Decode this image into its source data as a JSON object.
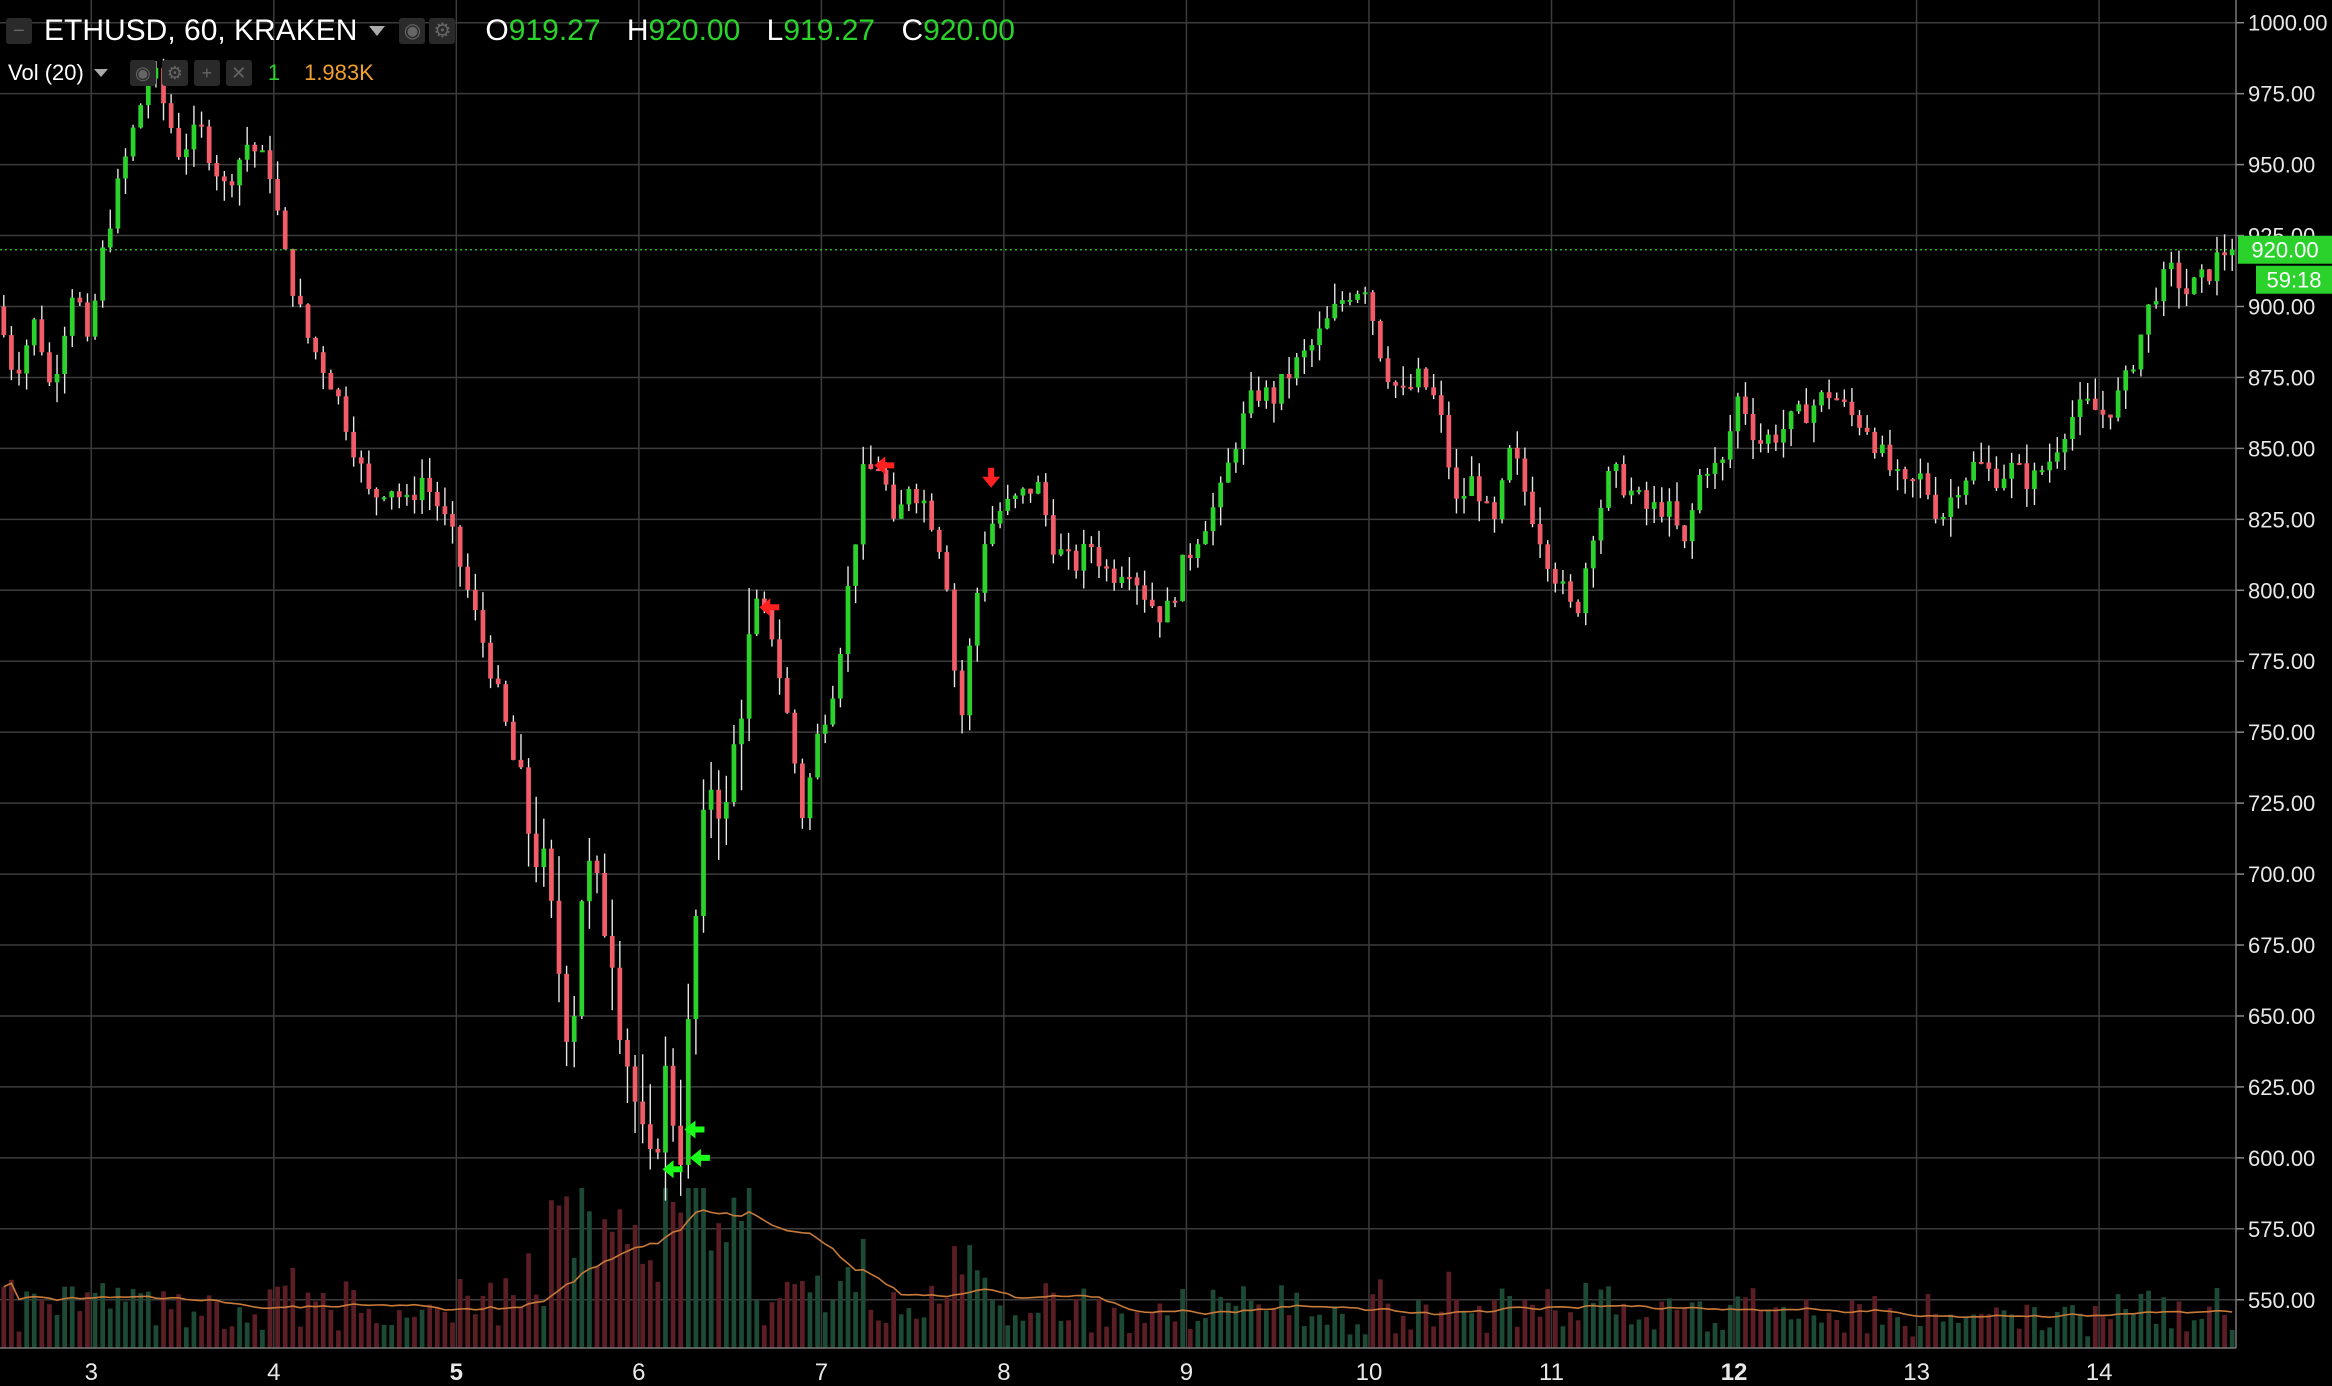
{
  "header": {
    "symbol": "ETHUSD, 60, KRAKEN",
    "o_label": "O",
    "o_value": "919.27",
    "h_label": "H",
    "h_value": "920.00",
    "l_label": "L",
    "l_value": "919.27",
    "c_label": "C",
    "c_value": "920.00"
  },
  "volume_legend": {
    "name": "Vol (20)",
    "count": "1",
    "value": "1.983K"
  },
  "price_badge": {
    "price": "920.00",
    "countdown": "59:18"
  },
  "colors": {
    "up": "#2bd22b",
    "down": "#f25c68",
    "vol_up": "#1c4a35",
    "vol_down": "#5a1e24",
    "ma": "#c87a3a",
    "grid": "#3c3c3c",
    "background": "#000000"
  },
  "chart_data": {
    "type": "candlestick",
    "y_axis": {
      "ticks": [
        1000,
        975,
        950,
        925,
        900,
        875,
        850,
        825,
        800,
        775,
        750,
        725,
        700,
        675,
        650,
        625,
        600,
        575,
        550
      ],
      "tick_labels": [
        "1000.00",
        "975.00",
        "950.00",
        "925.00",
        "900.00",
        "875.00",
        "850.00",
        "825.00",
        "800.00",
        "775.00",
        "750.00",
        "725.00",
        "700.00",
        "675.00",
        "650.00",
        "625.00",
        "600.00",
        "575.00",
        "550.00"
      ],
      "ylim": [
        533,
        1008
      ]
    },
    "x_axis": {
      "tick_labels": [
        "3",
        "4",
        "5",
        "6",
        "7",
        "8",
        "9",
        "10",
        "11",
        "12",
        "13",
        "14"
      ],
      "bold": [
        "5",
        "12"
      ],
      "x_range_days": [
        2.5,
        14.75
      ]
    },
    "last_price": 920.0,
    "price_path": [
      [
        2.5,
        900
      ],
      [
        2.6,
        876
      ],
      [
        2.72,
        896
      ],
      [
        2.8,
        870
      ],
      [
        2.93,
        910
      ],
      [
        3.0,
        885
      ],
      [
        3.1,
        925
      ],
      [
        3.2,
        950
      ],
      [
        3.35,
        985
      ],
      [
        3.5,
        955
      ],
      [
        3.62,
        962
      ],
      [
        3.75,
        942
      ],
      [
        3.88,
        958
      ],
      [
        4.0,
        948
      ],
      [
        4.08,
        918
      ],
      [
        4.2,
        890
      ],
      [
        4.35,
        872
      ],
      [
        4.45,
        853
      ],
      [
        4.55,
        832
      ],
      [
        4.65,
        838
      ],
      [
        4.75,
        830
      ],
      [
        4.83,
        840
      ],
      [
        4.92,
        830
      ],
      [
        5.0,
        818
      ],
      [
        5.1,
        796
      ],
      [
        5.2,
        775
      ],
      [
        5.3,
        750
      ],
      [
        5.4,
        720
      ],
      [
        5.5,
        700
      ],
      [
        5.6,
        660
      ],
      [
        5.65,
        640
      ],
      [
        5.72,
        705
      ],
      [
        5.8,
        690
      ],
      [
        5.87,
        678
      ],
      [
        5.92,
        650
      ],
      [
        6.0,
        620
      ],
      [
        6.05,
        600
      ],
      [
        6.1,
        590
      ],
      [
        6.15,
        632
      ],
      [
        6.25,
        605
      ],
      [
        6.3,
        650
      ],
      [
        6.35,
        700
      ],
      [
        6.42,
        735
      ],
      [
        6.5,
        720
      ],
      [
        6.55,
        748
      ],
      [
        6.6,
        770
      ],
      [
        6.67,
        795
      ],
      [
        6.75,
        785
      ],
      [
        6.85,
        750
      ],
      [
        6.92,
        720
      ],
      [
        7.0,
        748
      ],
      [
        7.1,
        770
      ],
      [
        7.2,
        815
      ],
      [
        7.25,
        840
      ],
      [
        7.35,
        845
      ],
      [
        7.42,
        820
      ],
      [
        7.5,
        838
      ],
      [
        7.6,
        830
      ],
      [
        7.7,
        810
      ],
      [
        7.78,
        750
      ],
      [
        7.85,
        788
      ],
      [
        7.92,
        820
      ],
      [
        8.0,
        828
      ],
      [
        8.1,
        832
      ],
      [
        8.2,
        838
      ],
      [
        8.3,
        815
      ],
      [
        8.4,
        808
      ],
      [
        8.5,
        816
      ],
      [
        8.6,
        805
      ],
      [
        8.7,
        810
      ],
      [
        8.8,
        798
      ],
      [
        8.9,
        790
      ],
      [
        9.0,
        808
      ],
      [
        9.1,
        822
      ],
      [
        9.2,
        832
      ],
      [
        9.3,
        855
      ],
      [
        9.4,
        870
      ],
      [
        9.5,
        868
      ],
      [
        9.6,
        878
      ],
      [
        9.7,
        885
      ],
      [
        9.8,
        895
      ],
      [
        9.9,
        905
      ],
      [
        10.0,
        908
      ],
      [
        10.1,
        880
      ],
      [
        10.2,
        868
      ],
      [
        10.3,
        875
      ],
      [
        10.4,
        865
      ],
      [
        10.5,
        830
      ],
      [
        10.6,
        840
      ],
      [
        10.7,
        820
      ],
      [
        10.8,
        850
      ],
      [
        10.9,
        830
      ],
      [
        11.0,
        812
      ],
      [
        11.08,
        800
      ],
      [
        11.15,
        790
      ],
      [
        11.25,
        822
      ],
      [
        11.35,
        842
      ],
      [
        11.45,
        835
      ],
      [
        11.55,
        828
      ],
      [
        11.65,
        830
      ],
      [
        11.75,
        815
      ],
      [
        11.85,
        845
      ],
      [
        11.95,
        842
      ],
      [
        12.05,
        870
      ],
      [
        12.15,
        852
      ],
      [
        12.25,
        855
      ],
      [
        12.35,
        860
      ],
      [
        12.45,
        865
      ],
      [
        12.55,
        870
      ],
      [
        12.65,
        862
      ],
      [
        12.75,
        858
      ],
      [
        12.85,
        845
      ],
      [
        12.95,
        835
      ],
      [
        13.05,
        840
      ],
      [
        13.15,
        825
      ],
      [
        13.25,
        838
      ],
      [
        13.35,
        845
      ],
      [
        13.45,
        840
      ],
      [
        13.55,
        843
      ],
      [
        13.65,
        838
      ],
      [
        13.75,
        846
      ],
      [
        13.85,
        860
      ],
      [
        13.95,
        865
      ],
      [
        14.05,
        862
      ],
      [
        14.15,
        870
      ],
      [
        14.25,
        890
      ],
      [
        14.32,
        905
      ],
      [
        14.42,
        912
      ],
      [
        14.5,
        905
      ],
      [
        14.6,
        910
      ],
      [
        14.68,
        918
      ],
      [
        14.72,
        920
      ]
    ],
    "markers": [
      {
        "x": 6.72,
        "y": 794,
        "direction": "left",
        "color": "red"
      },
      {
        "x": 7.35,
        "y": 844,
        "direction": "left",
        "color": "red"
      },
      {
        "x": 7.93,
        "y": 840,
        "direction": "down",
        "color": "red"
      },
      {
        "x": 6.31,
        "y": 610,
        "direction": "left",
        "color": "green"
      },
      {
        "x": 6.34,
        "y": 600,
        "direction": "left",
        "color": "green"
      },
      {
        "x": 6.19,
        "y": 596,
        "direction": "left",
        "color": "green"
      }
    ]
  }
}
